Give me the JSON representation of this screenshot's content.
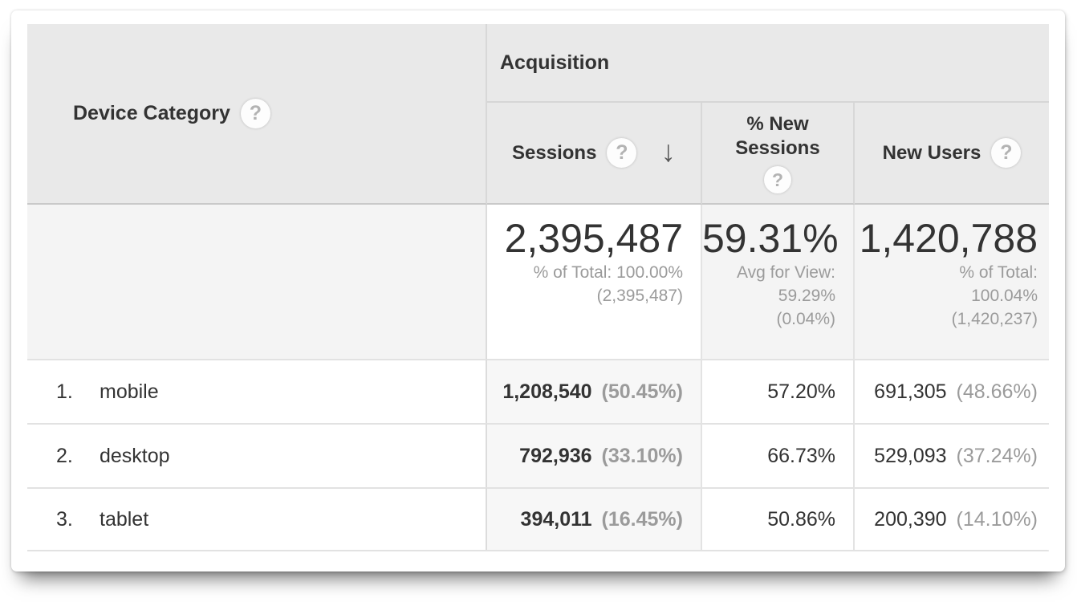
{
  "table": {
    "headers": {
      "dimension": "Device Category",
      "group": "Acquisition",
      "sessions": "Sessions",
      "pct_new_line1": "% New",
      "pct_new_line2": "Sessions",
      "new_users": "New Users"
    },
    "icons": {
      "help_glyph": "?",
      "sort_arrow_glyph": "↓"
    },
    "sort": {
      "column": "Sessions",
      "direction": "descending"
    },
    "summary": {
      "sessions": {
        "value": "2,395,487",
        "sub1": "% of Total: 100.00%",
        "sub2": "(2,395,487)"
      },
      "pct_new": {
        "value": "59.31%",
        "sub1": "Avg for View:",
        "sub2": "59.29%",
        "sub3": "(0.04%)"
      },
      "new_users": {
        "value": "1,420,788",
        "sub1": "% of Total:",
        "sub2": "100.04%",
        "sub3": "(1,420,237)"
      }
    },
    "rows": [
      {
        "index": "1.",
        "device": "mobile",
        "sessions": "1,208,540",
        "sessions_share": "(50.45%)",
        "pct_new": "57.20%",
        "new_users": "691,305",
        "new_users_share": "(48.66%)"
      },
      {
        "index": "2.",
        "device": "desktop",
        "sessions": "792,936",
        "sessions_share": "(33.10%)",
        "pct_new": "66.73%",
        "new_users": "529,093",
        "new_users_share": "(37.24%)"
      },
      {
        "index": "3.",
        "device": "tablet",
        "sessions": "394,011",
        "sessions_share": "(16.45%)",
        "pct_new": "50.86%",
        "new_users": "200,390",
        "new_users_share": "(14.10%)"
      }
    ],
    "colors": {
      "header_bg": "#e9e9e9",
      "summary_bg": "#f4f4f4",
      "sorted_column_bg": "#f7f7f7",
      "text_dark": "#333333",
      "text_gray": "#9b9b9b"
    }
  }
}
